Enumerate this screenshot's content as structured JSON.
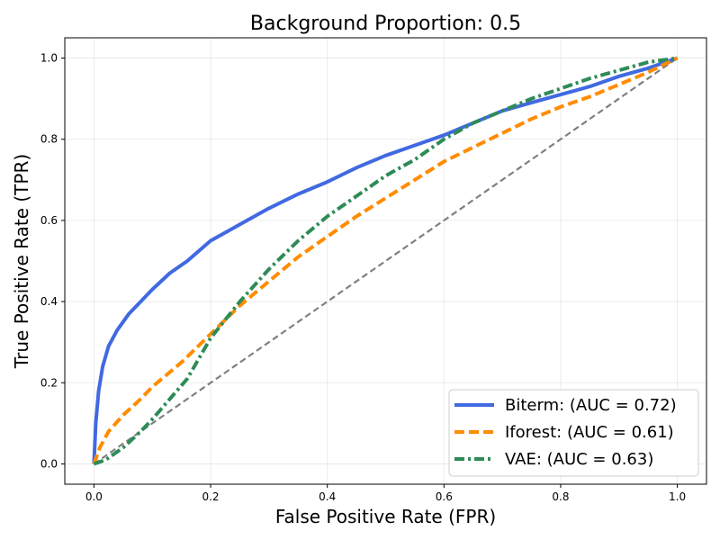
{
  "chart_data": {
    "type": "line",
    "title": "Background Proportion: 0.5",
    "xlabel": "False Positive Rate (FPR)",
    "ylabel": "True Positive Rate (TPR)",
    "xlim": [
      -0.05,
      1.05
    ],
    "ylim": [
      -0.05,
      1.05
    ],
    "grid": true,
    "legend_position": "lower-right",
    "xticks": [
      0.0,
      0.2,
      0.4,
      0.6,
      0.8,
      1.0
    ],
    "yticks": [
      0.0,
      0.2,
      0.4,
      0.6,
      0.8,
      1.0
    ],
    "xtick_labels": [
      "0.0",
      "0.2",
      "0.4",
      "0.6",
      "0.8",
      "1.0"
    ],
    "ytick_labels": [
      "0.0",
      "0.2",
      "0.4",
      "0.6",
      "0.8",
      "1.0"
    ],
    "series": [
      {
        "name": "Biterm: (AUC = 0.72)",
        "color": "#4169e1",
        "style": "solid",
        "x": [
          0,
          0.003,
          0.008,
          0.015,
          0.025,
          0.04,
          0.06,
          0.08,
          0.1,
          0.13,
          0.16,
          0.2,
          0.25,
          0.3,
          0.35,
          0.4,
          0.45,
          0.5,
          0.55,
          0.6,
          0.65,
          0.7,
          0.75,
          0.8,
          0.85,
          0.9,
          0.95,
          1.0
        ],
        "y": [
          0,
          0.1,
          0.18,
          0.24,
          0.29,
          0.33,
          0.37,
          0.4,
          0.43,
          0.47,
          0.5,
          0.55,
          0.59,
          0.63,
          0.665,
          0.695,
          0.73,
          0.76,
          0.785,
          0.81,
          0.84,
          0.87,
          0.89,
          0.91,
          0.93,
          0.955,
          0.975,
          1.0
        ]
      },
      {
        "name": "Iforest: (AUC = 0.61)",
        "color": "#ff8c00",
        "style": "dashed",
        "x": [
          0,
          0.01,
          0.025,
          0.05,
          0.08,
          0.1,
          0.15,
          0.2,
          0.25,
          0.3,
          0.35,
          0.4,
          0.45,
          0.5,
          0.55,
          0.6,
          0.65,
          0.7,
          0.75,
          0.8,
          0.85,
          0.9,
          0.95,
          1.0
        ],
        "y": [
          0,
          0.04,
          0.08,
          0.12,
          0.16,
          0.19,
          0.25,
          0.32,
          0.39,
          0.45,
          0.51,
          0.56,
          0.61,
          0.655,
          0.7,
          0.745,
          0.78,
          0.815,
          0.85,
          0.88,
          0.905,
          0.935,
          0.965,
          1.0
        ]
      },
      {
        "name": "VAE: (AUC = 0.63)",
        "color": "#2e8b57",
        "style": "dashdot",
        "x": [
          0,
          0.02,
          0.05,
          0.08,
          0.1,
          0.13,
          0.16,
          0.2,
          0.25,
          0.3,
          0.35,
          0.4,
          0.45,
          0.5,
          0.55,
          0.6,
          0.65,
          0.7,
          0.75,
          0.8,
          0.85,
          0.9,
          0.95,
          1.0
        ],
        "y": [
          0,
          0.01,
          0.04,
          0.08,
          0.11,
          0.16,
          0.21,
          0.31,
          0.4,
          0.48,
          0.55,
          0.61,
          0.66,
          0.71,
          0.75,
          0.8,
          0.84,
          0.87,
          0.9,
          0.925,
          0.95,
          0.97,
          0.99,
          1.0
        ]
      },
      {
        "name": "Random",
        "color": "#808080",
        "style": "dashed",
        "legend": false,
        "x": [
          0,
          1
        ],
        "y": [
          0,
          1
        ]
      }
    ]
  }
}
